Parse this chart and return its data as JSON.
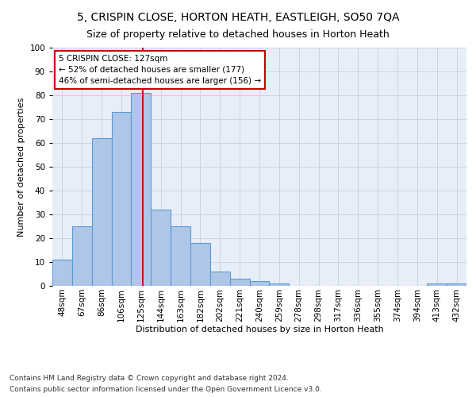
{
  "title": "5, CRISPIN CLOSE, HORTON HEATH, EASTLEIGH, SO50 7QA",
  "subtitle": "Size of property relative to detached houses in Horton Heath",
  "xlabel": "Distribution of detached houses by size in Horton Heath",
  "ylabel": "Number of detached properties",
  "categories": [
    "48sqm",
    "67sqm",
    "86sqm",
    "106sqm",
    "125sqm",
    "144sqm",
    "163sqm",
    "182sqm",
    "202sqm",
    "221sqm",
    "240sqm",
    "259sqm",
    "278sqm",
    "298sqm",
    "317sqm",
    "336sqm",
    "355sqm",
    "374sqm",
    "394sqm",
    "413sqm",
    "432sqm"
  ],
  "values": [
    11,
    25,
    62,
    73,
    81,
    32,
    25,
    18,
    6,
    3,
    2,
    1,
    0,
    0,
    0,
    0,
    0,
    0,
    0,
    1,
    1
  ],
  "bar_color": "#aec6e8",
  "bar_edge_color": "#5b9bd5",
  "marker_label": "5 CRISPIN CLOSE: 127sqm",
  "annotation_line1": "← 52% of detached houses are smaller (177)",
  "annotation_line2": "46% of semi-detached houses are larger (156) →",
  "footnote1": "Contains HM Land Registry data © Crown copyright and database right 2024.",
  "footnote2": "Contains public sector information licensed under the Open Government Licence v3.0.",
  "ylim": [
    0,
    100
  ],
  "title_fontsize": 10,
  "subtitle_fontsize": 9,
  "axis_label_fontsize": 8,
  "tick_fontsize": 7.5,
  "annotation_fontsize": 7.5,
  "footnote_fontsize": 6.5,
  "background_color": "#ffffff",
  "plot_bg_color": "#e8eef8",
  "grid_color": "#c8d4e8",
  "annotation_box_color": "#ffffff",
  "annotation_box_edge": "#cc0000",
  "vline_color": "#cc0000",
  "marker_idx_float": 4.105
}
